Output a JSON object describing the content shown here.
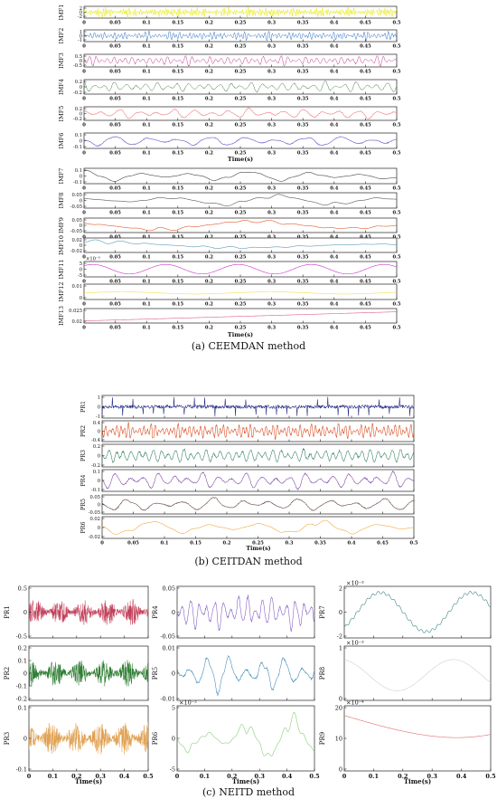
{
  "captions": {
    "a": "(a) CEEMDAN method",
    "b": "(b) CEITDAN method",
    "c": "(c) NEITD method"
  },
  "chart_data": [
    {
      "type": "line",
      "panel": "a",
      "xlabel": "Time(s)",
      "xlim": [
        0,
        0.5
      ],
      "x_ticks": [
        0,
        0.05,
        0.1,
        0.15,
        0.2,
        0.25,
        0.3,
        0.35,
        0.4,
        0.45,
        0.5
      ],
      "series": [
        {
          "name": "IMF1",
          "ylim": [
            -2,
            2
          ],
          "y_ticks": [
            "2",
            "0",
            "-2"
          ],
          "color": "#e6e600"
        },
        {
          "name": "IMF2",
          "ylim": [
            -1,
            1
          ],
          "y_ticks": [
            "1",
            "0",
            "-1"
          ],
          "color": "#2f6fbf"
        },
        {
          "name": "IMF3",
          "ylim": [
            -0.5,
            0.5
          ],
          "y_ticks": [
            "0.5",
            "0",
            "-0.5"
          ],
          "color": "#c0308a"
        },
        {
          "name": "IMF4",
          "ylim": [
            -0.2,
            0.2
          ],
          "y_ticks": [
            "0.2",
            "0",
            "-0.2"
          ],
          "color": "#3f7a3f"
        },
        {
          "name": "IMF5",
          "ylim": [
            -0.2,
            0.2
          ],
          "y_ticks": [
            "0.2",
            "0",
            "-0.2"
          ],
          "color": "#f08080"
        },
        {
          "name": "IMF6",
          "ylim": [
            -0.1,
            0.1
          ],
          "y_ticks": [
            "0.1",
            "0",
            "-0.1"
          ],
          "color": "#6a5acd"
        },
        {
          "name": "IMF7",
          "ylim": [
            -0.1,
            0.1
          ],
          "y_ticks": [
            "0.1",
            "0",
            "-0.1"
          ],
          "color": "#444444"
        },
        {
          "name": "IMF8",
          "ylim": [
            -0.05,
            0.05
          ],
          "y_ticks": [
            "0.05",
            "0",
            "-0.05"
          ],
          "color": "#555555"
        },
        {
          "name": "IMF9",
          "ylim": [
            -0.05,
            0.05
          ],
          "y_ticks": [
            "0.05",
            "0",
            "-0.05"
          ],
          "color": "#e05a2a"
        },
        {
          "name": "IMF10",
          "ylim": [
            -0.02,
            0.02
          ],
          "y_ticks": [
            "0.02",
            "0",
            "-0.02"
          ],
          "color": "#5a9ab8"
        },
        {
          "name": "IMF11",
          "ylim": [
            -5,
            5
          ],
          "y_ticks": [
            "5",
            "0",
            "-5"
          ],
          "exponent": "×10⁻³",
          "color": "#cc33cc"
        },
        {
          "name": "IMF12",
          "ylim": [
            0,
            0.01
          ],
          "y_ticks": [
            "0.01",
            "0"
          ],
          "color": "#f2e04a"
        },
        {
          "name": "IMF13",
          "ylim": [
            0.015,
            0.025
          ],
          "y_ticks": [
            "0.025",
            "0.02"
          ],
          "color": "#e06080"
        }
      ],
      "xlabel_shown_after": [
        "IMF6",
        "IMF13"
      ]
    },
    {
      "type": "line",
      "panel": "b",
      "xlabel": "Time(s)",
      "xlim": [
        0,
        0.5
      ],
      "x_ticks": [
        0,
        0.05,
        0.1,
        0.15,
        0.2,
        0.25,
        0.3,
        0.35,
        0.4,
        0.45,
        0.5
      ],
      "series": [
        {
          "name": "PR1",
          "ylim": [
            -1,
            1
          ],
          "y_ticks": [
            "1",
            "0",
            "-1"
          ],
          "color": "#1a237e"
        },
        {
          "name": "PR2",
          "ylim": [
            -0.4,
            0.4
          ],
          "y_ticks": [
            "0.4",
            "0",
            "-0.4"
          ],
          "color": "#d84315"
        },
        {
          "name": "PR3",
          "ylim": [
            -0.2,
            0.2
          ],
          "y_ticks": [
            "0.2",
            "0",
            "-0.2"
          ],
          "color": "#2e7d5b"
        },
        {
          "name": "PR4",
          "ylim": [
            -0.1,
            0.1
          ],
          "y_ticks": [
            "0.1",
            "0",
            "-0.1"
          ],
          "color": "#7b3fa0"
        },
        {
          "name": "PR5",
          "ylim": [
            -0.05,
            0.05
          ],
          "y_ticks": [
            "0.05",
            "0",
            "-0.05"
          ],
          "color": "#5d4037"
        },
        {
          "name": "PR6",
          "ylim": [
            -0.02,
            0.02
          ],
          "y_ticks": [
            "0.02",
            "0",
            "-0.02"
          ],
          "color": "#f0a030"
        }
      ]
    },
    {
      "type": "line",
      "panel": "c",
      "xlabel": "Time(s)",
      "xlim": [
        0,
        0.5
      ],
      "x_ticks": [
        "0",
        "0.1",
        "0.2",
        "0.3",
        "0.4",
        "0.5"
      ],
      "series": [
        {
          "name": "PR1",
          "ylim": [
            -0.6,
            0.6
          ],
          "y_ticks": [
            "0.5",
            "0",
            "-0.5"
          ],
          "color": "#c2415a"
        },
        {
          "name": "PR2",
          "ylim": [
            -0.2,
            0.2
          ],
          "y_ticks": [
            "0.2",
            "0.1",
            "0",
            "-0.1",
            "-0.2"
          ],
          "color": "#2e7d32"
        },
        {
          "name": "PR3",
          "ylim": [
            -0.12,
            0.12
          ],
          "y_ticks": [
            "0.1",
            "0",
            "-0.1"
          ],
          "color": "#e0a050"
        },
        {
          "name": "PR4",
          "ylim": [
            -0.07,
            0.07
          ],
          "y_ticks": [
            "0.05",
            "0",
            "-0.05"
          ],
          "color": "#7e57c2"
        },
        {
          "name": "PR5",
          "ylim": [
            -0.015,
            0.015
          ],
          "y_ticks": [
            "0.01",
            "0",
            "-0.01"
          ],
          "color": "#3d8ab8"
        },
        {
          "name": "PR6",
          "ylim": [
            -6,
            6
          ],
          "y_ticks": [
            "5",
            "0",
            "-5"
          ],
          "exponent": "×10⁻³",
          "color": "#7ccc6c"
        },
        {
          "name": "PR7",
          "ylim": [
            -3,
            3
          ],
          "y_ticks": [
            "2",
            "0",
            "-2"
          ],
          "exponent": "×10⁻³",
          "color": "#2e7d7a"
        },
        {
          "name": "PR8",
          "ylim": [
            -1,
            1.5
          ],
          "y_ticks": [
            "1",
            "0"
          ],
          "exponent": "×10⁻³",
          "color": "#cccccc"
        },
        {
          "name": "PR9",
          "ylim": [
            -5,
            20
          ],
          "y_ticks": [
            "20",
            "10",
            "0"
          ],
          "exponent": "×10⁻⁴",
          "color": "#e06060"
        }
      ]
    }
  ]
}
